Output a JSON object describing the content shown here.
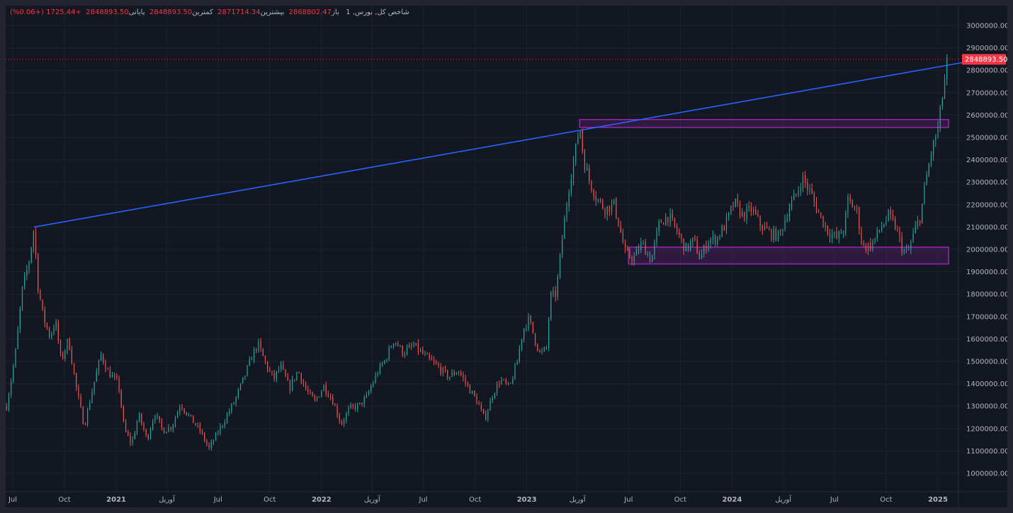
{
  "legend": {
    "symbol": "شاخص کل, بورس, 1",
    "open_label": "باز",
    "open": "2868802.47",
    "high_label": "بیشترین",
    "high": "2871714.34",
    "low_label": "کمترین",
    "low": "2848893.50",
    "close_label": "پایانی",
    "close": "2848893.50",
    "change": "+1725.44 (+0.06%)"
  },
  "chart_data": {
    "type": "candlestick",
    "x_ticks": [
      {
        "label": "Jul",
        "date": "2020-07",
        "bold": false
      },
      {
        "label": "Oct",
        "date": "2020-10",
        "bold": false
      },
      {
        "label": "2021",
        "date": "2021-01",
        "bold": true
      },
      {
        "label": "آوریل",
        "date": "2021-04",
        "bold": false
      },
      {
        "label": "Jul",
        "date": "2021-07",
        "bold": false
      },
      {
        "label": "Oct",
        "date": "2021-10",
        "bold": false
      },
      {
        "label": "2022",
        "date": "2022-01",
        "bold": true
      },
      {
        "label": "آوریل",
        "date": "2022-04",
        "bold": false
      },
      {
        "label": "Jul",
        "date": "2022-07",
        "bold": false
      },
      {
        "label": "Oct",
        "date": "2022-10",
        "bold": false
      },
      {
        "label": "2023",
        "date": "2023-01",
        "bold": true
      },
      {
        "label": "آوریل",
        "date": "2023-04",
        "bold": false
      },
      {
        "label": "Jul",
        "date": "2023-07",
        "bold": false
      },
      {
        "label": "Oct",
        "date": "2023-10",
        "bold": false
      },
      {
        "label": "2024",
        "date": "2024-01",
        "bold": true
      },
      {
        "label": "آوریل",
        "date": "2024-04",
        "bold": false
      },
      {
        "label": "Jul",
        "date": "2024-07",
        "bold": false
      },
      {
        "label": "Oct",
        "date": "2024-10",
        "bold": false
      },
      {
        "label": "2025",
        "date": "2025-01",
        "bold": true
      }
    ],
    "y_ticks": [
      "1000000.00",
      "1100000.00",
      "1200000.00",
      "1300000.00",
      "1400000.00",
      "1500000.00",
      "1600000.00",
      "1700000.00",
      "1800000.00",
      "1900000.00",
      "2000000.00",
      "2100000.00",
      "2200000.00",
      "2300000.00",
      "2400000.00",
      "2500000.00",
      "2600000.00",
      "2700000.00",
      "2800000.00",
      "2900000.00",
      "3000000.00"
    ],
    "ylim": [
      940000,
      3060000
    ],
    "last_price": 2848893.5,
    "last_price_label": "2848893.50",
    "price_path": [
      [
        "2020-06-20",
        1300000
      ],
      [
        "2020-07-05",
        1520000
      ],
      [
        "2020-07-18",
        1820000
      ],
      [
        "2020-07-30",
        1950000
      ],
      [
        "2020-08-08",
        2100000
      ],
      [
        "2020-08-14",
        1850000
      ],
      [
        "2020-08-24",
        1700000
      ],
      [
        "2020-09-05",
        1610000
      ],
      [
        "2020-09-15",
        1680000
      ],
      [
        "2020-09-25",
        1500000
      ],
      [
        "2020-10-08",
        1600000
      ],
      [
        "2020-10-22",
        1380000
      ],
      [
        "2020-11-05",
        1210000
      ],
      [
        "2020-11-20",
        1380000
      ],
      [
        "2020-12-05",
        1530000
      ],
      [
        "2020-12-18",
        1450000
      ],
      [
        "2021-01-05",
        1400000
      ],
      [
        "2021-01-15",
        1200000
      ],
      [
        "2021-01-28",
        1130000
      ],
      [
        "2021-02-10",
        1260000
      ],
      [
        "2021-02-25",
        1150000
      ],
      [
        "2021-03-10",
        1270000
      ],
      [
        "2021-03-25",
        1190000
      ],
      [
        "2021-04-10",
        1210000
      ],
      [
        "2021-04-25",
        1310000
      ],
      [
        "2021-05-12",
        1250000
      ],
      [
        "2021-05-30",
        1190000
      ],
      [
        "2021-06-15",
        1110000
      ],
      [
        "2021-06-30",
        1180000
      ],
      [
        "2021-07-15",
        1250000
      ],
      [
        "2021-07-30",
        1320000
      ],
      [
        "2021-08-15",
        1420000
      ],
      [
        "2021-08-30",
        1520000
      ],
      [
        "2021-09-10",
        1580000
      ],
      [
        "2021-09-25",
        1480000
      ],
      [
        "2021-10-08",
        1420000
      ],
      [
        "2021-10-20",
        1480000
      ],
      [
        "2021-11-05",
        1380000
      ],
      [
        "2021-11-20",
        1460000
      ],
      [
        "2021-12-05",
        1370000
      ],
      [
        "2021-12-20",
        1320000
      ],
      [
        "2022-01-05",
        1390000
      ],
      [
        "2022-01-20",
        1330000
      ],
      [
        "2022-02-05",
        1220000
      ],
      [
        "2022-02-20",
        1290000
      ],
      [
        "2022-03-08",
        1300000
      ],
      [
        "2022-03-22",
        1340000
      ],
      [
        "2022-04-10",
        1450000
      ],
      [
        "2022-04-25",
        1510000
      ],
      [
        "2022-05-10",
        1600000
      ],
      [
        "2022-05-25",
        1540000
      ],
      [
        "2022-06-15",
        1570000
      ],
      [
        "2022-07-05",
        1520000
      ],
      [
        "2022-07-25",
        1480000
      ],
      [
        "2022-08-15",
        1430000
      ],
      [
        "2022-09-01",
        1460000
      ],
      [
        "2022-09-20",
        1380000
      ],
      [
        "2022-10-05",
        1320000
      ],
      [
        "2022-10-18",
        1240000
      ],
      [
        "2022-11-01",
        1350000
      ],
      [
        "2022-11-15",
        1420000
      ],
      [
        "2022-12-01",
        1380000
      ],
      [
        "2022-12-15",
        1500000
      ],
      [
        "2022-12-25",
        1640000
      ],
      [
        "2023-01-05",
        1690000
      ],
      [
        "2023-01-15",
        1600000
      ],
      [
        "2023-01-25",
        1530000
      ],
      [
        "2023-02-05",
        1560000
      ],
      [
        "2023-02-12",
        1790000
      ],
      [
        "2023-02-22",
        1800000
      ],
      [
        "2023-03-05",
        2050000
      ],
      [
        "2023-03-18",
        2300000
      ],
      [
        "2023-03-28",
        2430000
      ],
      [
        "2023-04-05",
        2560000
      ],
      [
        "2023-04-12",
        2400000
      ],
      [
        "2023-04-22",
        2310000
      ],
      [
        "2023-05-05",
        2230000
      ],
      [
        "2023-05-20",
        2180000
      ],
      [
        "2023-06-05",
        2200000
      ],
      [
        "2023-06-15",
        2100000
      ],
      [
        "2023-06-25",
        1980000
      ],
      [
        "2023-07-10",
        1960000
      ],
      [
        "2023-07-25",
        2030000
      ],
      [
        "2023-08-10",
        1950000
      ],
      [
        "2023-08-25",
        2120000
      ],
      [
        "2023-09-10",
        2150000
      ],
      [
        "2023-09-25",
        2080000
      ],
      [
        "2023-10-10",
        2000000
      ],
      [
        "2023-10-25",
        2040000
      ],
      [
        "2023-11-05",
        1960000
      ],
      [
        "2023-11-20",
        2040000
      ],
      [
        "2023-12-05",
        2050000
      ],
      [
        "2023-12-20",
        2110000
      ],
      [
        "2024-01-05",
        2210000
      ],
      [
        "2024-01-20",
        2150000
      ],
      [
        "2024-02-05",
        2180000
      ],
      [
        "2024-02-20",
        2110000
      ],
      [
        "2024-03-10",
        2070000
      ],
      [
        "2024-03-25",
        2060000
      ],
      [
        "2024-04-10",
        2180000
      ],
      [
        "2024-04-25",
        2250000
      ],
      [
        "2024-05-05",
        2320000
      ],
      [
        "2024-05-20",
        2250000
      ],
      [
        "2024-06-05",
        2150000
      ],
      [
        "2024-06-20",
        2080000
      ],
      [
        "2024-07-05",
        2050000
      ],
      [
        "2024-07-18",
        2090000
      ],
      [
        "2024-07-25",
        2220000
      ],
      [
        "2024-08-10",
        2170000
      ],
      [
        "2024-08-20",
        2010000
      ],
      [
        "2024-09-05",
        2020000
      ],
      [
        "2024-09-20",
        2090000
      ],
      [
        "2024-10-05",
        2150000
      ],
      [
        "2024-10-18",
        2100000
      ],
      [
        "2024-10-30",
        2000000
      ],
      [
        "2024-11-08",
        1980000
      ],
      [
        "2024-11-20",
        2080000
      ],
      [
        "2024-12-01",
        2150000
      ],
      [
        "2024-12-10",
        2300000
      ],
      [
        "2024-12-20",
        2430000
      ],
      [
        "2025-01-01",
        2540000
      ],
      [
        "2025-01-10",
        2700000
      ],
      [
        "2025-01-18",
        2849000
      ]
    ],
    "drawings": {
      "trendline": {
        "from": [
          "2020-08-08",
          2100000
        ],
        "to": [
          "2025-02-15",
          2835000
        ],
        "color": "#2962ff"
      },
      "resistance_zone": {
        "from": "2023-04-05",
        "to": "2025-01-20",
        "top": 2580000,
        "bottom": 2545000,
        "color": "#9c27b0"
      },
      "support_zone": {
        "from": "2023-07-01",
        "to": "2025-01-20",
        "top": 2010000,
        "bottom": 1935000,
        "color": "#9c27b0"
      }
    },
    "colors": {
      "up": "#26a69a",
      "down": "#ef5350",
      "background": "#131722",
      "grid": "#1e222d",
      "text": "#b2b5be",
      "price_label": "#f23645"
    },
    "grid": true
  }
}
